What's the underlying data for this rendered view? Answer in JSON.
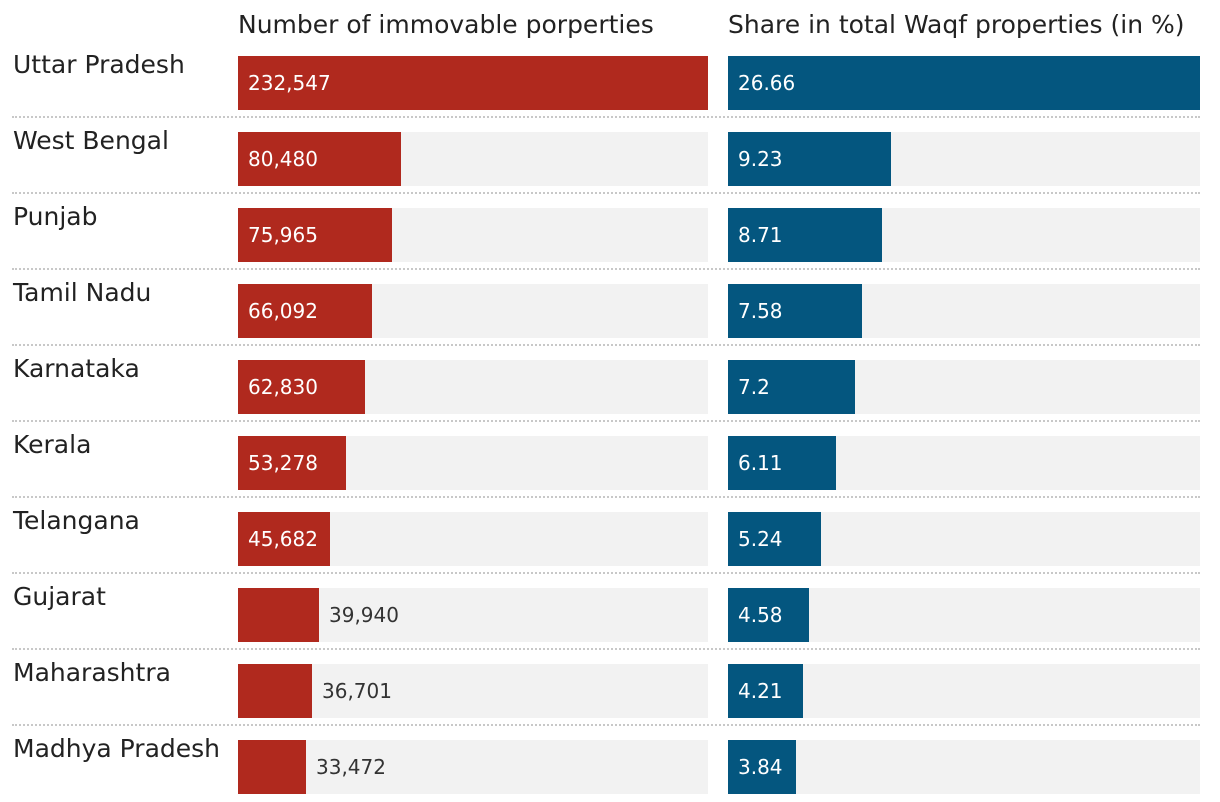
{
  "chart_data": {
    "type": "bar",
    "orientation": "horizontal",
    "categories": [
      "Uttar Pradesh",
      "West Bengal",
      "Punjab",
      "Tamil Nadu",
      "Karnataka",
      "Kerala",
      "Telangana",
      "Gujarat",
      "Maharashtra",
      "Madhya Pradesh"
    ],
    "series": [
      {
        "name": "Number of immovable porperties",
        "values": [
          232547,
          80480,
          75965,
          66092,
          62830,
          53278,
          45682,
          39940,
          36701,
          33472
        ],
        "labels": [
          "232,547",
          "80,480",
          "75,965",
          "66,092",
          "62,830",
          "53,278",
          "45,682",
          "39,940",
          "36,701",
          "33,472"
        ],
        "max": 232547,
        "color": "#b0291e"
      },
      {
        "name": "Share in total Waqf properties (in %)",
        "values": [
          26.66,
          9.23,
          8.71,
          7.58,
          7.2,
          6.11,
          5.24,
          4.58,
          4.21,
          3.84
        ],
        "labels": [
          "26.66",
          "9.23",
          "8.71",
          "7.58",
          "7.2",
          "6.11",
          "5.24",
          "4.58",
          "4.21",
          "3.84"
        ],
        "max": 26.66,
        "color": "#04567f"
      }
    ],
    "track_color": "#f2f2f2"
  }
}
